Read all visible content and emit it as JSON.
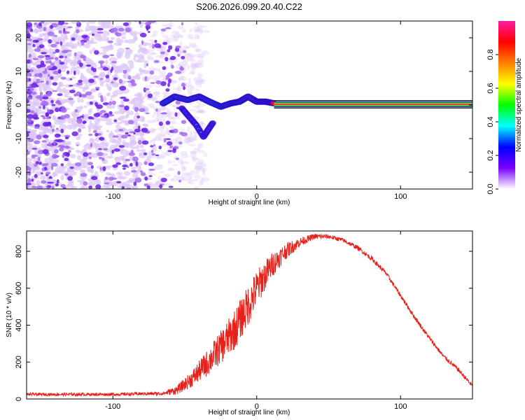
{
  "title": "S206.2026.099.20.40.C22",
  "colors": {
    "snr_line": "#e8201a",
    "carrier": "#ff1a1a",
    "speckle_light": "#dcc6f6",
    "speckle_dark": "#6a1ee6",
    "frame": "#000000"
  },
  "chart_data": [
    {
      "type": "heatmap",
      "name": "spectrogram",
      "xlabel": "Height of straight line (km)",
      "ylabel": "Frequency (Hz)",
      "xlim": [
        -160,
        150
      ],
      "ylim": [
        -25,
        25
      ],
      "xticks": [
        -100,
        0,
        100
      ],
      "xtick_labels": [
        "-100",
        "0",
        "100"
      ],
      "yticks": [
        -20,
        -10,
        0,
        10,
        20
      ],
      "ytick_labels": [
        "-20",
        "-10",
        "0",
        "10",
        "20"
      ],
      "noise_region_x": [
        -160,
        -55
      ],
      "carrier_path": [
        {
          "x": -65,
          "y": 0.5,
          "a": 0.35
        },
        {
          "x": -57,
          "y": 2.5,
          "a": 0.45
        },
        {
          "x": -48,
          "y": 1.5,
          "a": 0.4
        },
        {
          "x": -40,
          "y": 2.5,
          "a": 0.4
        },
        {
          "x": -33,
          "y": 1.0,
          "a": 0.35
        },
        {
          "x": -25,
          "y": -0.5,
          "a": 0.45
        },
        {
          "x": -18,
          "y": 0.5,
          "a": 0.55
        },
        {
          "x": -12,
          "y": 1.0,
          "a": 0.5
        },
        {
          "x": -6,
          "y": 2.5,
          "a": 0.6
        },
        {
          "x": 0,
          "y": 1.0,
          "a": 0.7
        },
        {
          "x": 6,
          "y": 1.0,
          "a": 0.8
        },
        {
          "x": 12,
          "y": 0.5,
          "a": 0.9
        },
        {
          "x": 150,
          "y": 0.2,
          "a": 1.0
        }
      ],
      "side_branch": [
        {
          "x": -52,
          "y": -1.0
        },
        {
          "x": -47,
          "y": -3.5
        },
        {
          "x": -42,
          "y": -6.0
        },
        {
          "x": -37,
          "y": -9.5
        },
        {
          "x": -34,
          "y": -7.5
        },
        {
          "x": -30,
          "y": -5.0
        }
      ]
    },
    {
      "type": "colorbar",
      "name": "amplitude-colorbar",
      "label": "Normalized spectral amplitude",
      "range": [
        0,
        1
      ],
      "ticks": [
        0.0,
        0.2,
        0.4,
        0.6,
        0.8
      ],
      "tick_labels": [
        "0.0",
        "0.2",
        "0.4",
        "0.6",
        "0.8"
      ],
      "stops": [
        "#ffffff",
        "#7a00ff",
        "#0000ff",
        "#00ffff",
        "#00ff00",
        "#ffff00",
        "#ff8000",
        "#ff0000",
        "#ff1aa0"
      ]
    },
    {
      "type": "line",
      "name": "snr-profile",
      "xlabel": "Height of straight line (km)",
      "ylabel": "SNR (10 * v/v)",
      "xlim": [
        -160,
        150
      ],
      "ylim": [
        0,
        910
      ],
      "xticks": [
        -100,
        0,
        100
      ],
      "xtick_labels": [
        "-100",
        "0",
        "100"
      ],
      "yticks": [
        0,
        200,
        400,
        600,
        800
      ],
      "ytick_labels": [
        "0",
        "200",
        "400",
        "600",
        "800"
      ],
      "x": [
        -160,
        -140,
        -120,
        -100,
        -80,
        -65,
        -55,
        -45,
        -35,
        -25,
        -15,
        -5,
        0,
        10,
        20,
        30,
        40,
        50,
        60,
        70,
        80,
        90,
        100,
        110,
        120,
        130,
        140,
        150
      ],
      "values": [
        25,
        25,
        25,
        25,
        28,
        30,
        50,
        110,
        190,
        280,
        380,
        520,
        600,
        720,
        800,
        850,
        880,
        880,
        860,
        820,
        760,
        680,
        560,
        440,
        330,
        230,
        160,
        70
      ],
      "noise_amplitude": [
        8,
        8,
        8,
        8,
        8,
        10,
        25,
        45,
        70,
        90,
        110,
        110,
        100,
        70,
        45,
        25,
        15,
        12,
        12,
        12,
        12,
        12,
        12,
        12,
        12,
        12,
        12,
        12
      ]
    }
  ]
}
